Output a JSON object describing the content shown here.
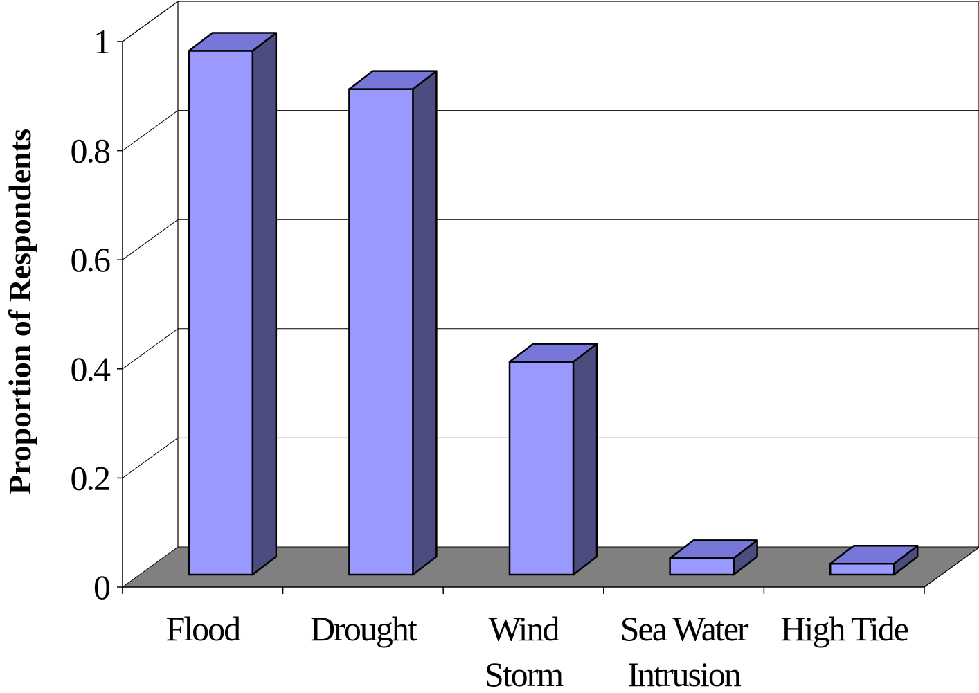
{
  "chart_data": {
    "type": "bar",
    "style": "3d-column",
    "title": "",
    "xlabel": "",
    "ylabel": "Proportion of Respondents",
    "ylim": [
      0,
      1
    ],
    "yticks": [
      0,
      0.2,
      0.4,
      0.6,
      0.8,
      1
    ],
    "ytick_labels": [
      "0",
      "0.2",
      "0.4",
      "0.6",
      "0.8",
      "1"
    ],
    "grid": true,
    "legend": "none",
    "categories": [
      [
        "Flood"
      ],
      [
        "Drought"
      ],
      [
        "Wind",
        "Storm"
      ],
      [
        "Sea Water",
        "Intrusion"
      ],
      [
        "High Tide"
      ]
    ],
    "values": [
      0.96,
      0.89,
      0.39,
      0.03,
      0.02
    ],
    "colors": {
      "bar_front": "#9999ff",
      "bar_top": "#7777d9",
      "bar_side": "#4c4c80",
      "floor": "#808080",
      "grid": "#000000"
    }
  }
}
